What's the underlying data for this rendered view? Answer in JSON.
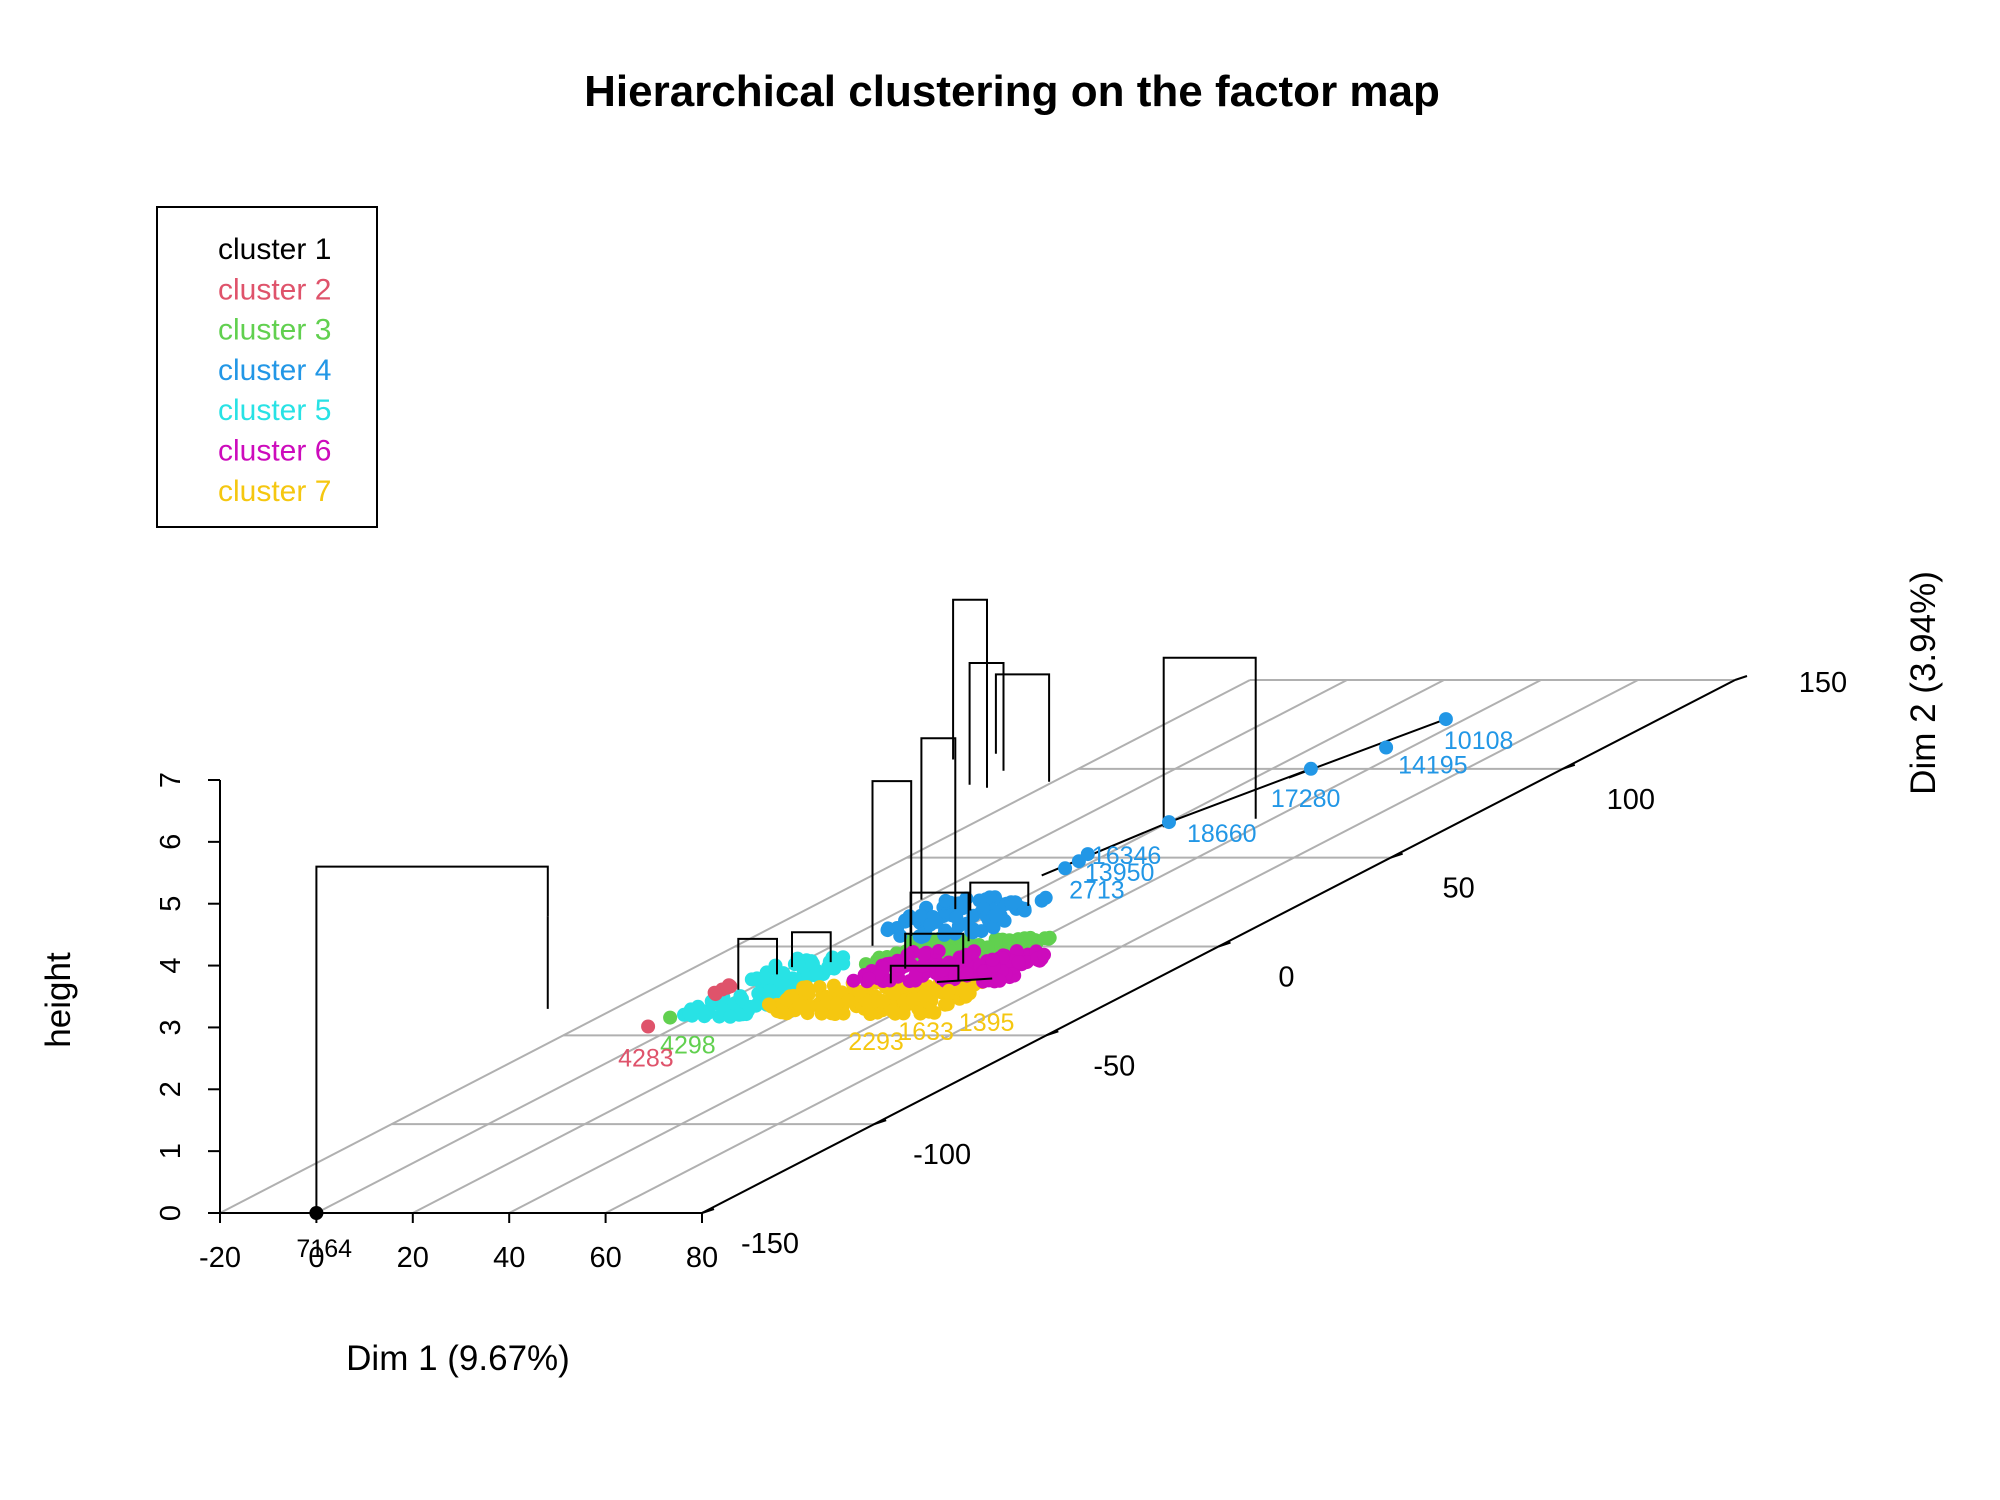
{
  "chart_data": {
    "type": "scatter",
    "title": "Hierarchical clustering on the factor map",
    "xlabel": "Dim 1 (9.67%)",
    "ylabel": "Dim 2 (3.94%)",
    "zlabel": "height",
    "projection": "3D perspective",
    "grid": true,
    "legend_position": "top-left",
    "x_ticks": [
      "-20",
      "0",
      "20",
      "40",
      "60",
      "80"
    ],
    "y_ticks": [
      "-150",
      "-100",
      "-50",
      "0",
      "50",
      "100",
      "150"
    ],
    "z_ticks": [
      "0",
      "1",
      "2",
      "3",
      "4",
      "5",
      "6",
      "7"
    ],
    "xlim": [
      -20,
      80
    ],
    "ylim": [
      -150,
      150
    ],
    "zlim": [
      0,
      7
    ],
    "legend": [
      {
        "label": "cluster 1",
        "color": "#000000"
      },
      {
        "label": "cluster 2",
        "color": "#DF536B"
      },
      {
        "label": "cluster 3",
        "color": "#61D04F"
      },
      {
        "label": "cluster 4",
        "color": "#2297E6"
      },
      {
        "label": "cluster 5",
        "color": "#28E2E5"
      },
      {
        "label": "cluster 6",
        "color": "#CD0BBC"
      },
      {
        "label": "cluster 7",
        "color": "#F5C710"
      }
    ],
    "point_labels": [
      {
        "label": "7164",
        "cluster": 1,
        "x": 0,
        "y": -150
      },
      {
        "label": "10108",
        "cluster": 4,
        "x": 36,
        "y": 128
      },
      {
        "label": "14195",
        "cluster": 4,
        "x": 35,
        "y": 112
      },
      {
        "label": "17280",
        "cluster": 4,
        "x": 28,
        "y": 100
      },
      {
        "label": "18660",
        "cluster": 4,
        "x": 20,
        "y": 70
      },
      {
        "label": "16346",
        "cluster": 4,
        "x": 16,
        "y": 52
      },
      {
        "label": "13950",
        "cluster": 4,
        "x": 17,
        "y": 48
      },
      {
        "label": "2713",
        "cluster": 4,
        "x": 17,
        "y": 44
      },
      {
        "label": "4298",
        "cluster": 3,
        "x": -5,
        "y": -40
      },
      {
        "label": "4283",
        "cluster": 2,
        "x": -6,
        "y": -45
      },
      {
        "label": "2293",
        "cluster": 7,
        "x": 35,
        "y": -38
      },
      {
        "label": "1633",
        "cluster": 7,
        "x": 38,
        "y": -30
      },
      {
        "label": "1395",
        "cluster": 7,
        "x": 42,
        "y": -25
      }
    ]
  }
}
